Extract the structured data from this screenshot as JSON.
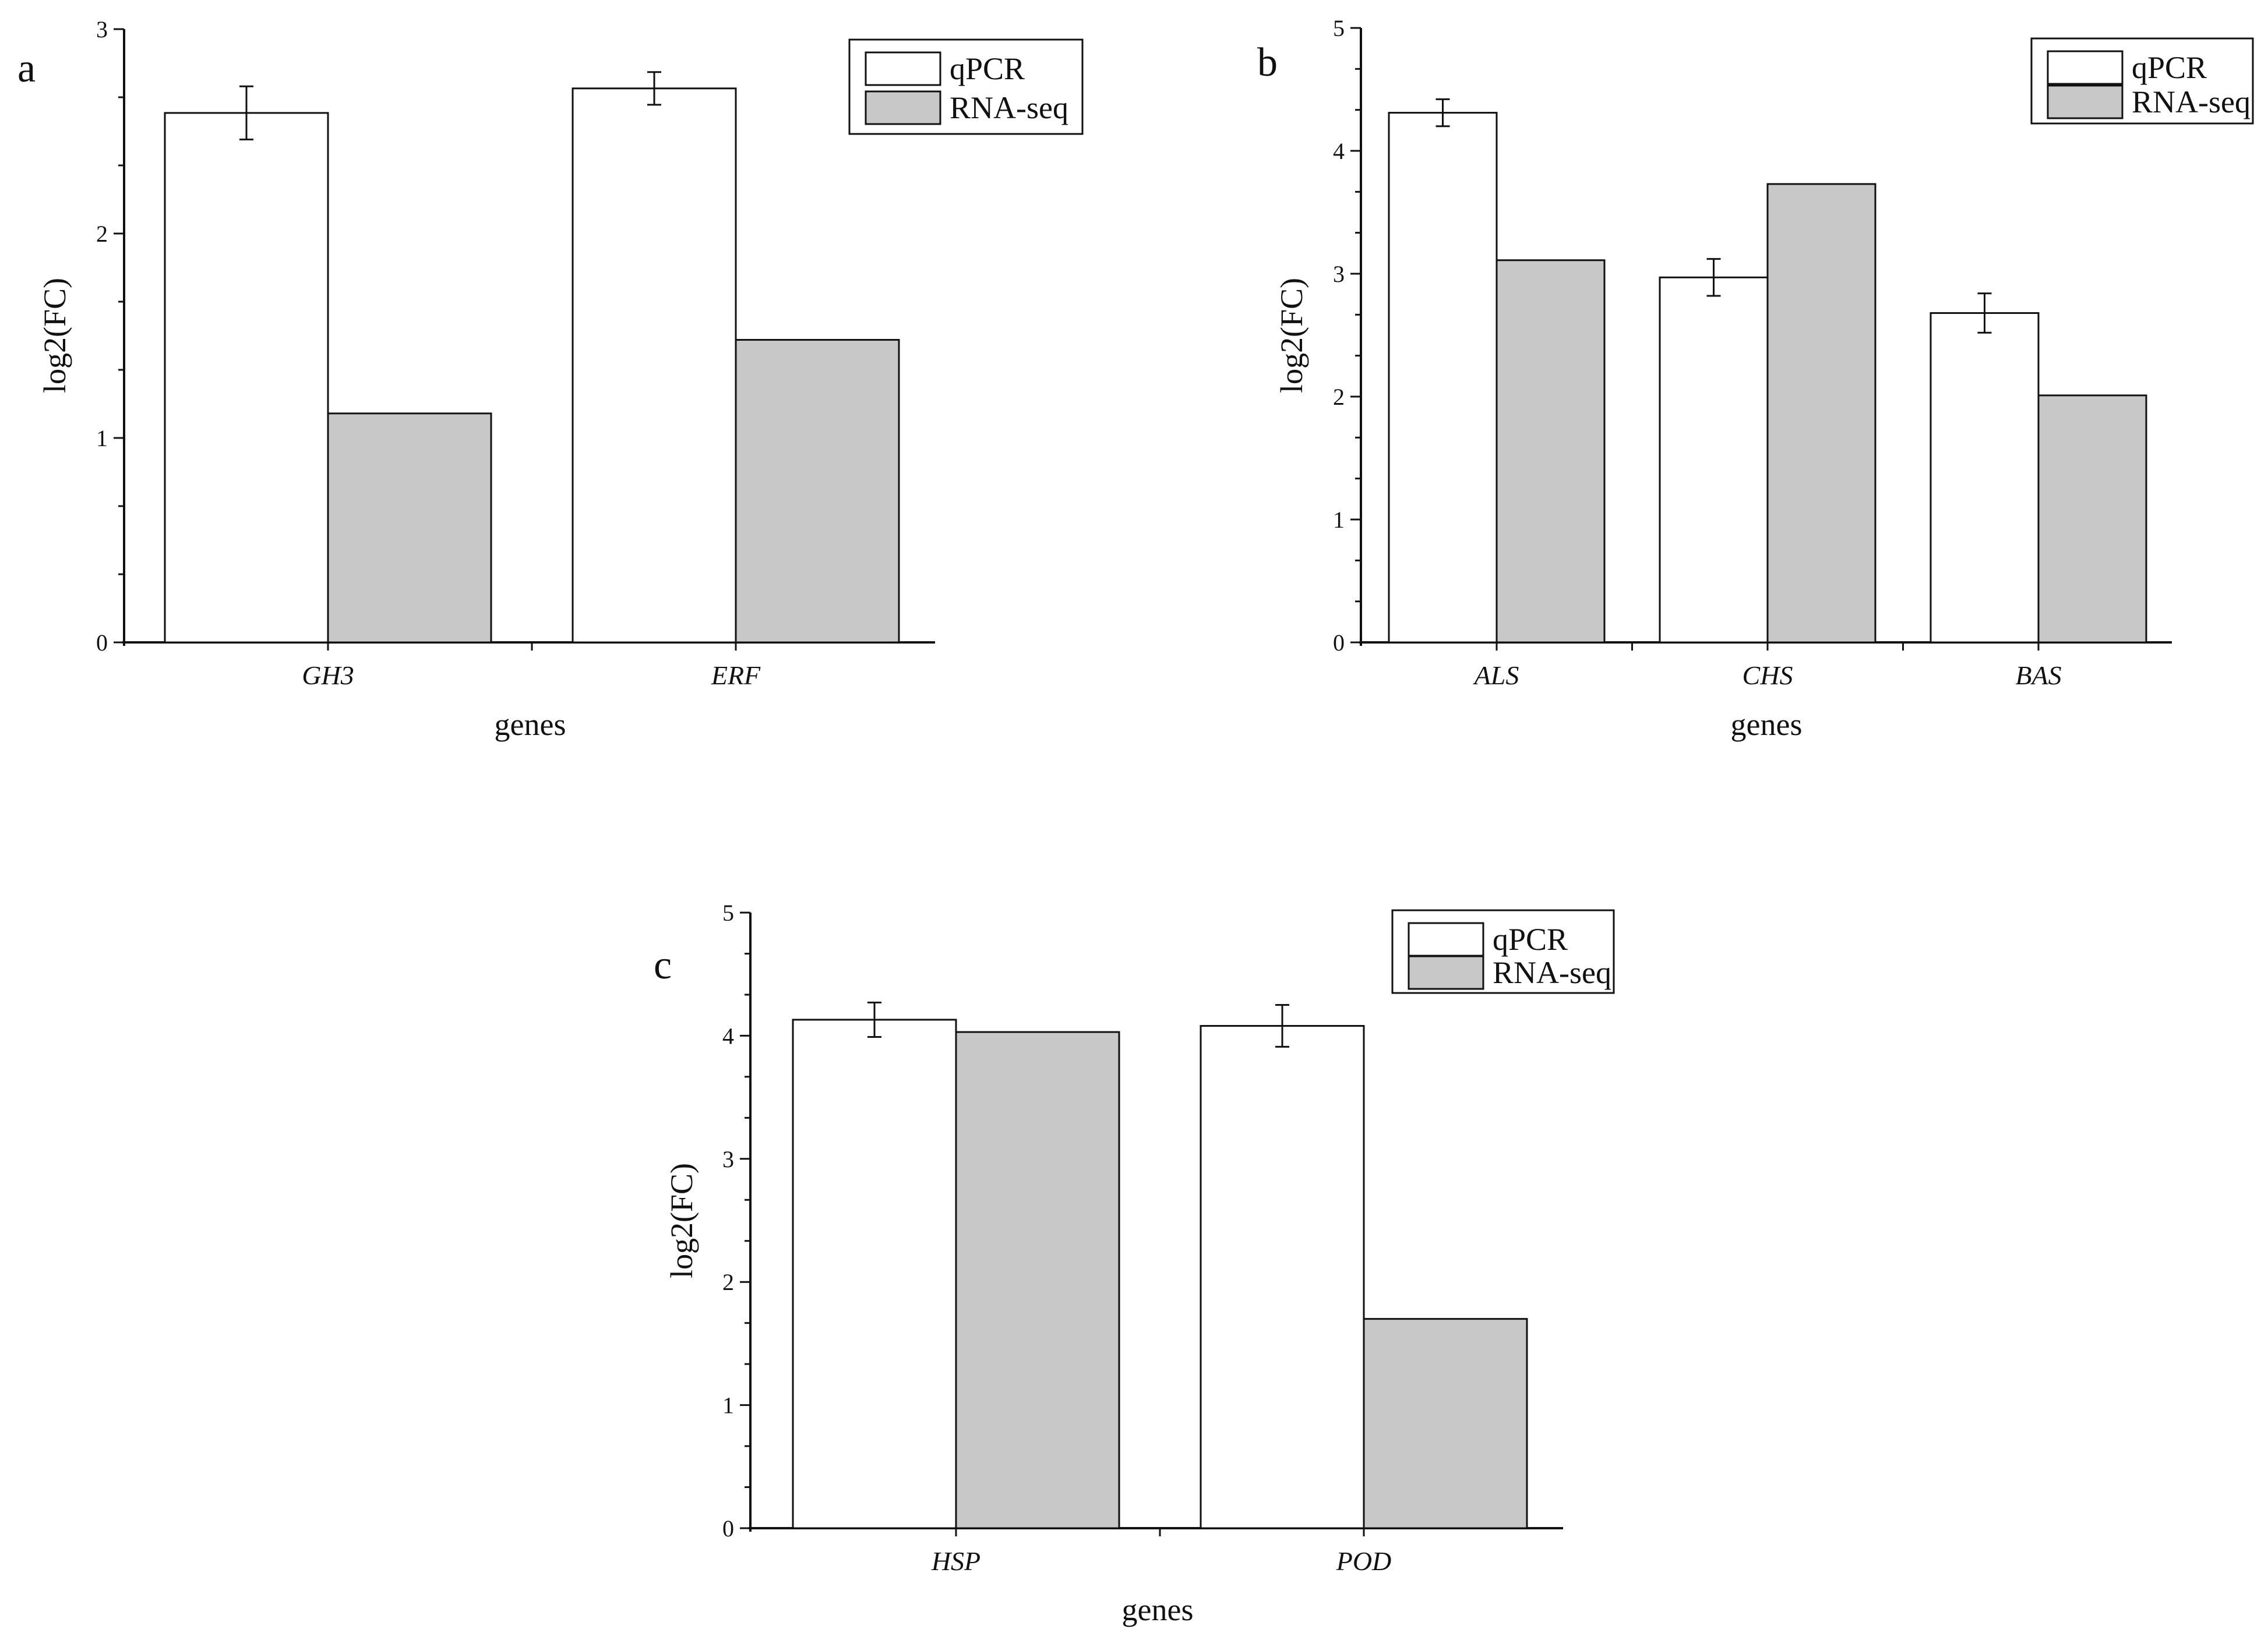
{
  "colors": {
    "qpcr": "#ffffff",
    "rnaseq": "#c8c8c8",
    "stroke": "#111111"
  },
  "chart_data": [
    {
      "type": "bar",
      "panel_label": "a",
      "categories": [
        "GH3",
        "ERF"
      ],
      "series": [
        {
          "name": "qPCR",
          "values": [
            2.59,
            2.71
          ],
          "errors": [
            0.13,
            0.08
          ]
        },
        {
          "name": "RNA-seq",
          "values": [
            1.12,
            1.48
          ]
        }
      ],
      "ylim": [
        0,
        3
      ],
      "yticks": [
        0,
        1,
        2,
        3
      ],
      "xlabel": "genes",
      "ylabel": "log2(FC)",
      "legend": "top-right"
    },
    {
      "type": "bar",
      "panel_label": "b",
      "categories": [
        "ALS",
        "CHS",
        "BAS"
      ],
      "series": [
        {
          "name": "qPCR",
          "values": [
            4.31,
            2.97,
            2.68
          ],
          "errors": [
            0.11,
            0.15,
            0.16
          ]
        },
        {
          "name": "RNA-seq",
          "values": [
            3.11,
            3.73,
            2.01
          ]
        }
      ],
      "ylim": [
        0,
        5
      ],
      "yticks": [
        0,
        1,
        2,
        3,
        4,
        5
      ],
      "xlabel": "genes",
      "ylabel": "log2(FC)",
      "legend": "top-right"
    },
    {
      "type": "bar",
      "panel_label": "c",
      "categories": [
        "HSP",
        "POD"
      ],
      "series": [
        {
          "name": "qPCR",
          "values": [
            4.13,
            4.08
          ],
          "errors": [
            0.14,
            0.17
          ]
        },
        {
          "name": "RNA-seq",
          "values": [
            4.03,
            1.7
          ]
        }
      ],
      "ylim": [
        0,
        5
      ],
      "yticks": [
        0,
        1,
        2,
        3,
        4,
        5
      ],
      "xlabel": "genes",
      "ylabel": "log2(FC)",
      "legend": "top-right"
    }
  ]
}
